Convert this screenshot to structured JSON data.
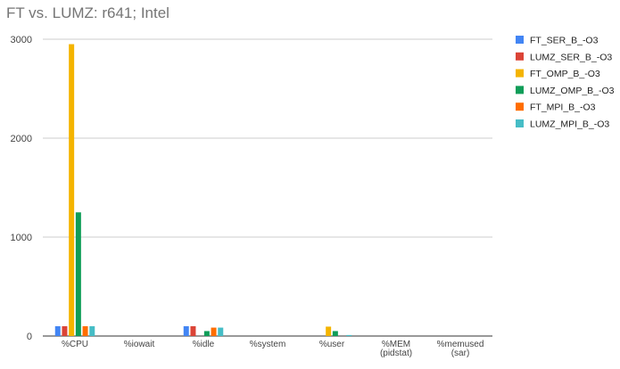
{
  "chart_data": {
    "type": "bar",
    "title": "FT vs. LUMZ: r641; Intel",
    "categories": [
      "%CPU",
      "%iowait",
      "%idle",
      "%system",
      "%user",
      "%MEM (pidstat)",
      "%memused (sar)"
    ],
    "category_lines": [
      [
        "%CPU"
      ],
      [
        "%iowait"
      ],
      [
        "%idle"
      ],
      [
        "%system"
      ],
      [
        "%user"
      ],
      [
        "%MEM",
        "(pidstat)"
      ],
      [
        "%memused",
        "(sar)"
      ]
    ],
    "ylim": [
      0,
      3000
    ],
    "yticks": [
      0,
      1000,
      2000,
      3000
    ],
    "grid": true,
    "legend_position": "right",
    "series": [
      {
        "name": "FT_SER_B_-O3",
        "color": "#4285F4",
        "values": [
          99,
          0,
          99,
          0,
          0,
          0,
          0
        ]
      },
      {
        "name": "LUMZ_SER_B_-O3",
        "color": "#DB4437",
        "values": [
          99,
          0,
          99,
          0,
          0,
          0,
          0
        ]
      },
      {
        "name": "FT_OMP_B_-O3",
        "color": "#F4B400",
        "values": [
          2950,
          0,
          0,
          0,
          95,
          0,
          0
        ]
      },
      {
        "name": "LUMZ_OMP_B_-O3",
        "color": "#0F9D58",
        "values": [
          1250,
          0,
          50,
          0,
          50,
          0,
          0
        ]
      },
      {
        "name": "FT_MPI_B_-O3",
        "color": "#FF6D00",
        "values": [
          99,
          0,
          85,
          0,
          0,
          0,
          0
        ]
      },
      {
        "name": "LUMZ_MPI_B_-O3",
        "color": "#46BDC6",
        "values": [
          99,
          0,
          85,
          0,
          10,
          0,
          0
        ]
      }
    ]
  }
}
